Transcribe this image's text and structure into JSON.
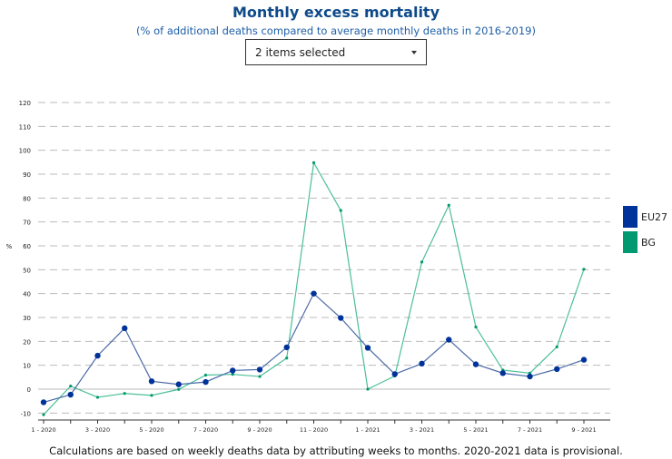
{
  "title": "Monthly excess mortality",
  "subtitle": "(% of additional deaths compared to average monthly deaths in 2016-2019)",
  "dropdown": {
    "value": "2 items selected"
  },
  "footnote": "Calculations are based on weekly deaths data by attributing weeks to months. 2020-2021 data is provisional.",
  "chart_data": {
    "type": "line",
    "title": "Monthly excess mortality",
    "ylabel": "%",
    "ylim": [
      -10,
      120
    ],
    "yticks": [
      -10,
      0,
      10,
      20,
      30,
      40,
      50,
      60,
      70,
      80,
      90,
      100,
      110,
      120
    ],
    "grid": true,
    "legend": "right",
    "x": [
      "1 - 2020",
      "2 - 2020",
      "3 - 2020",
      "4 - 2020",
      "5 - 2020",
      "6 - 2020",
      "7 - 2020",
      "8 - 2020",
      "9 - 2020",
      "10 - 2020",
      "11 - 2020",
      "12 - 2020",
      "1 - 2021",
      "2 - 2021",
      "3 - 2021",
      "4 - 2021",
      "5 - 2021",
      "6 - 2021",
      "7 - 2021",
      "8 - 2021",
      "9 - 2021"
    ],
    "xtick_labels": [
      "1 - 2020",
      "",
      "3 - 2020",
      "",
      "5 - 2020",
      "",
      "7 - 2020",
      "",
      "9 - 2020",
      "",
      "11 - 2020",
      "",
      "1 - 2021",
      "",
      "3 - 2021",
      "",
      "5 - 2021",
      "",
      "7 - 2021",
      "",
      "9 - 2021"
    ],
    "series": [
      {
        "name": "EU27",
        "color": "#003399",
        "line_color": "#4a6aa8",
        "values": [
          -5.5,
          -2.3,
          14,
          25.5,
          3.3,
          2,
          3,
          7.8,
          8.2,
          17.5,
          40,
          29.8,
          17.3,
          6.3,
          10.7,
          20.7,
          10.4,
          6.7,
          5.3,
          8.4,
          12.3
        ]
      },
      {
        "name": "BG",
        "color": "#009970",
        "line_color": "#4cbf98",
        "values": [
          -10.7,
          1.3,
          -3.4,
          -1.8,
          -2.6,
          -0.1,
          5.9,
          6.2,
          5.3,
          13,
          94.8,
          74.8,
          0,
          5.5,
          53.2,
          77,
          26,
          8,
          6.7,
          17.7,
          50.2
        ]
      }
    ]
  }
}
